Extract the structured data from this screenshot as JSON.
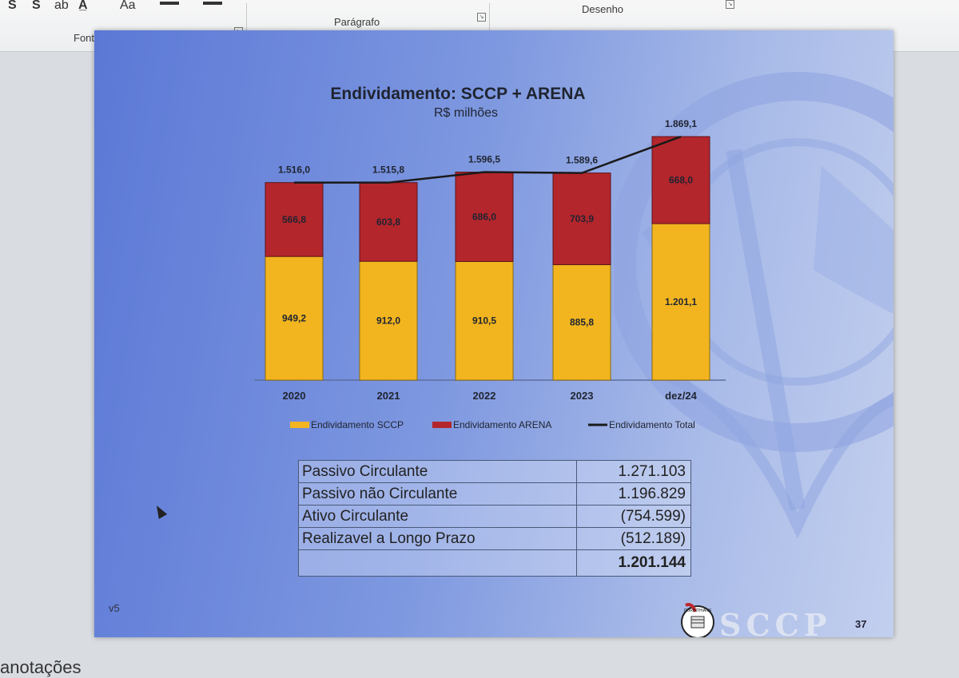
{
  "ribbon": {
    "groups": [
      "Fonte",
      "Parágrafo",
      "Desenho"
    ],
    "font_icons": [
      "S",
      "S",
      "ab",
      "A̲",
      "Aa"
    ]
  },
  "slide": {
    "version": "v5",
    "page_number": "37",
    "logo_text": "SCCP",
    "logo_badge_text": "CORINTHIANS"
  },
  "chart_data": {
    "type": "bar",
    "stacked": true,
    "title": "Endividamento: SCCP + ARENA",
    "subtitle": "R$ milhões",
    "categories": [
      "2020",
      "2021",
      "2022",
      "2023",
      "dez/24"
    ],
    "series": [
      {
        "name": "Endividamento SCCP",
        "values": [
          949.2,
          912.0,
          910.5,
          885.8,
          1201.1
        ],
        "labels": [
          "949,2",
          "912,0",
          "910,5",
          "885,8",
          "1.201,1"
        ],
        "color": "#f2b51f"
      },
      {
        "name": "Endividamento ARENA",
        "values": [
          566.8,
          603.8,
          686.0,
          703.9,
          668.0
        ],
        "labels": [
          "566,8",
          "603,8",
          "686,0",
          "703,9",
          "668,0"
        ],
        "color": "#b3262c"
      },
      {
        "name": "Endividamento Total",
        "type": "line",
        "values": [
          1516.0,
          1515.8,
          1596.5,
          1589.6,
          1869.1
        ],
        "labels": [
          "1.516,0",
          "1.515,8",
          "1.596,5",
          "1.589,6",
          "1.869,1"
        ],
        "color": "#1a1a1a"
      }
    ],
    "ylim": [
      0,
      1900
    ],
    "legend_position": "bottom"
  },
  "table": {
    "rows": [
      {
        "label": "Passivo Circulante",
        "value": "1.271.103"
      },
      {
        "label": "Passivo não Circulante",
        "value": "1.196.829"
      },
      {
        "label": "Ativo Circulante",
        "value": "(754.599)"
      },
      {
        "label": "Realizavel a Longo Prazo",
        "value": "(512.189)"
      }
    ],
    "total": {
      "label": "",
      "value": "1.201.144"
    }
  },
  "footer": {
    "label": "anotações"
  },
  "colors": {
    "accent_yellow": "#f2b51f",
    "accent_red": "#b3262c",
    "slide_blue": "#6f8ad9"
  }
}
